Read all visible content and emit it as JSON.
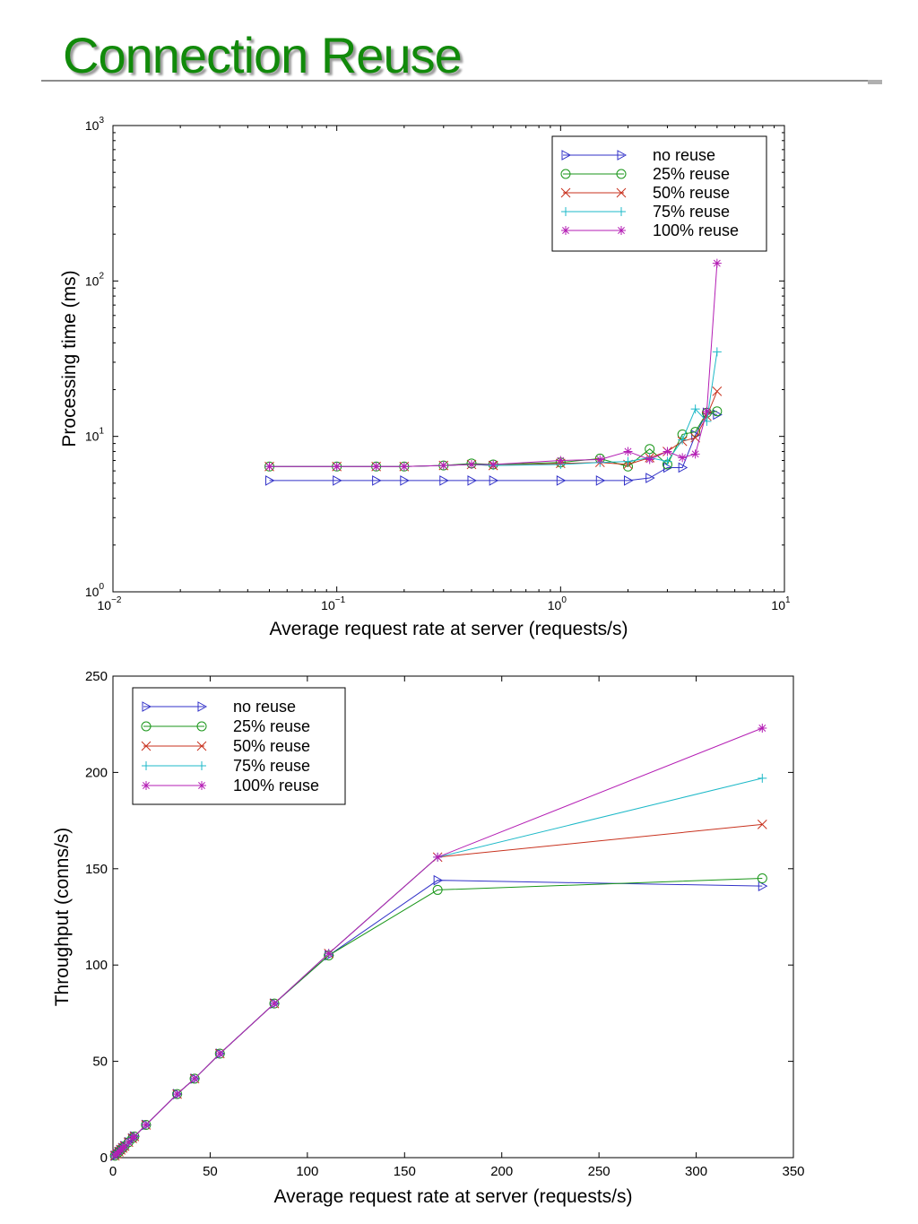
{
  "title": "Connection Reuse",
  "colors": {
    "title": "#118a0a",
    "no_reuse": "#3232c8",
    "reuse_25": "#199619",
    "reuse_50": "#c8321e",
    "reuse_75": "#1eb9c8",
    "reuse_100": "#b41eb4"
  },
  "chart_data": [
    {
      "type": "line",
      "xscale": "log",
      "yscale": "log",
      "xlabel": "Average request rate at server (requests/s)",
      "ylabel": "Processing time (ms)",
      "xlim": [
        0.01,
        10
      ],
      "ylim": [
        1,
        1000
      ],
      "x_ticks": [
        0.01,
        0.1,
        1,
        10
      ],
      "x_tick_labels": [
        {
          "base": "10",
          "exp": "−2"
        },
        {
          "base": "10",
          "exp": "−1"
        },
        {
          "base": "10",
          "exp": "0"
        },
        {
          "base": "10",
          "exp": "1"
        }
      ],
      "y_ticks": [
        1,
        10,
        100,
        1000
      ],
      "y_tick_labels": [
        {
          "base": "10",
          "exp": "0"
        },
        {
          "base": "10",
          "exp": "1"
        },
        {
          "base": "10",
          "exp": "2"
        },
        {
          "base": "10",
          "exp": "3"
        }
      ],
      "grid": false,
      "legend_position": "top-right",
      "series": [
        {
          "name": "no reuse",
          "marker": "triangle-right",
          "color": "#3232c8",
          "x": [
            0.05,
            0.1,
            0.15,
            0.2,
            0.3,
            0.4,
            0.5,
            1,
            1.5,
            2,
            2.5,
            3,
            3.5,
            4,
            4.5,
            5
          ],
          "y": [
            5.2,
            5.2,
            5.2,
            5.2,
            5.2,
            5.2,
            5.2,
            5.2,
            5.2,
            5.2,
            5.4,
            6.3,
            6.3,
            10.2,
            14.2,
            13.8
          ]
        },
        {
          "name": "25% reuse",
          "marker": "circle",
          "color": "#199619",
          "x": [
            0.05,
            0.1,
            0.15,
            0.2,
            0.3,
            0.4,
            0.5,
            1,
            1.5,
            2,
            2.5,
            3,
            3.5,
            4,
            4.5,
            5
          ],
          "y": [
            6.4,
            6.4,
            6.4,
            6.4,
            6.5,
            6.7,
            6.6,
            6.8,
            7.2,
            6.4,
            8.3,
            6.6,
            10.3,
            10.7,
            14.2,
            14.5
          ]
        },
        {
          "name": "50% reuse",
          "marker": "x",
          "color": "#c8321e",
          "x": [
            0.05,
            0.1,
            0.15,
            0.2,
            0.3,
            0.4,
            0.5,
            1,
            1.5,
            2,
            2.5,
            3,
            3.5,
            4,
            4.5,
            5
          ],
          "y": [
            6.4,
            6.4,
            6.4,
            6.4,
            6.5,
            6.6,
            6.5,
            6.7,
            6.8,
            6.6,
            7.3,
            8.0,
            9.3,
            9.8,
            13.5,
            19.5
          ]
        },
        {
          "name": "75% reuse",
          "marker": "plus",
          "color": "#1eb9c8",
          "x": [
            0.05,
            0.1,
            0.15,
            0.2,
            0.3,
            0.4,
            0.5,
            1,
            1.5,
            2,
            2.5,
            3,
            3.5,
            4,
            4.5,
            5
          ],
          "y": [
            6.4,
            6.4,
            6.4,
            6.4,
            6.5,
            6.6,
            6.5,
            6.6,
            6.8,
            6.9,
            7.3,
            6.9,
            9.5,
            15.0,
            12.5,
            35.0
          ]
        },
        {
          "name": "100% reuse",
          "marker": "asterisk",
          "color": "#b41eb4",
          "x": [
            0.05,
            0.1,
            0.15,
            0.2,
            0.3,
            0.4,
            0.5,
            1,
            1.5,
            2,
            2.5,
            3,
            3.5,
            4,
            4.5,
            5
          ],
          "y": [
            6.4,
            6.4,
            6.4,
            6.4,
            6.5,
            6.6,
            6.6,
            7.0,
            7.1,
            8.0,
            7.1,
            8.0,
            7.3,
            7.7,
            14.5,
            130
          ]
        }
      ]
    },
    {
      "type": "line",
      "xscale": "linear",
      "yscale": "linear",
      "xlabel": "Average request rate at server (requests/s)",
      "ylabel": "Throughput (conns/s)",
      "xlim": [
        0,
        350
      ],
      "ylim": [
        0,
        250
      ],
      "x_ticks": [
        0,
        50,
        100,
        150,
        200,
        250,
        300,
        350
      ],
      "y_ticks": [
        0,
        50,
        100,
        150,
        200,
        250
      ],
      "grid": false,
      "legend_position": "top-left",
      "series": [
        {
          "name": "no reuse",
          "marker": "triangle-right",
          "color": "#3232c8",
          "x": [
            1,
            2,
            3,
            4,
            5,
            6,
            8,
            10,
            11,
            17,
            33,
            42,
            55,
            83,
            111,
            167,
            334
          ],
          "y": [
            1,
            2,
            3,
            4,
            5,
            6,
            8,
            10,
            11,
            17,
            33,
            41,
            54,
            80,
            105,
            144,
            141
          ]
        },
        {
          "name": "25% reuse",
          "marker": "circle",
          "color": "#199619",
          "x": [
            1,
            2,
            3,
            4,
            5,
            6,
            8,
            10,
            11,
            17,
            33,
            42,
            55,
            83,
            111,
            167,
            334
          ],
          "y": [
            1,
            2,
            3,
            4,
            5,
            6,
            8,
            10,
            11,
            17,
            33,
            41,
            54,
            80,
            105,
            139,
            145
          ]
        },
        {
          "name": "50% reuse",
          "marker": "x",
          "color": "#c8321e",
          "x": [
            1,
            2,
            3,
            4,
            5,
            6,
            8,
            10,
            11,
            17,
            33,
            42,
            55,
            83,
            111,
            167,
            334
          ],
          "y": [
            1,
            2,
            3,
            4,
            5,
            6,
            8,
            10,
            11,
            17,
            33,
            41,
            54,
            80,
            106,
            156,
            173
          ]
        },
        {
          "name": "75% reuse",
          "marker": "plus",
          "color": "#1eb9c8",
          "x": [
            1,
            2,
            3,
            4,
            5,
            6,
            8,
            10,
            11,
            17,
            33,
            42,
            55,
            83,
            111,
            167,
            334
          ],
          "y": [
            1,
            2,
            3,
            4,
            5,
            6,
            8,
            10,
            11,
            17,
            33,
            41,
            54,
            80,
            106,
            156,
            197
          ]
        },
        {
          "name": "100% reuse",
          "marker": "asterisk",
          "color": "#b41eb4",
          "x": [
            1,
            2,
            3,
            4,
            5,
            6,
            8,
            10,
            11,
            17,
            33,
            42,
            55,
            83,
            111,
            167,
            334
          ],
          "y": [
            1,
            2,
            3,
            4,
            5,
            6,
            8,
            10,
            11,
            17,
            33,
            41,
            54,
            80,
            106,
            156,
            223
          ]
        }
      ]
    }
  ]
}
